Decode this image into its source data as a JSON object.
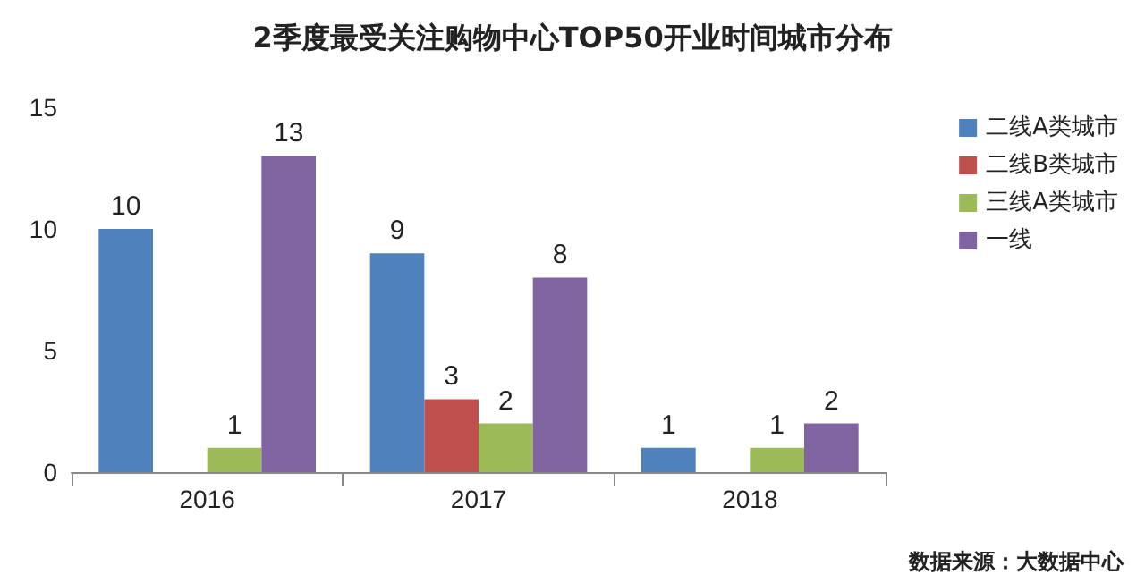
{
  "chart_data": {
    "type": "bar",
    "title": "2季度最受关注购物中心TOP50开业时间城市分布",
    "categories": [
      "2016",
      "2017",
      "2018"
    ],
    "series": [
      {
        "name": "二线A类城市",
        "color": "#4f81bd",
        "values": [
          10,
          9,
          1
        ]
      },
      {
        "name": "二线B类城市",
        "color": "#c0504d",
        "values": [
          null,
          3,
          null
        ]
      },
      {
        "name": "三线A类城市",
        "color": "#9bbb59",
        "values": [
          1,
          2,
          1
        ]
      },
      {
        "name": "一线",
        "color": "#8064a2",
        "values": [
          13,
          8,
          2
        ]
      }
    ],
    "ylim": [
      0,
      15
    ],
    "yticks": [
      0,
      5,
      10,
      15
    ],
    "grid": false,
    "legend": "right",
    "data_labels": true,
    "annotations": [
      "数据来源：大数据中心"
    ]
  }
}
